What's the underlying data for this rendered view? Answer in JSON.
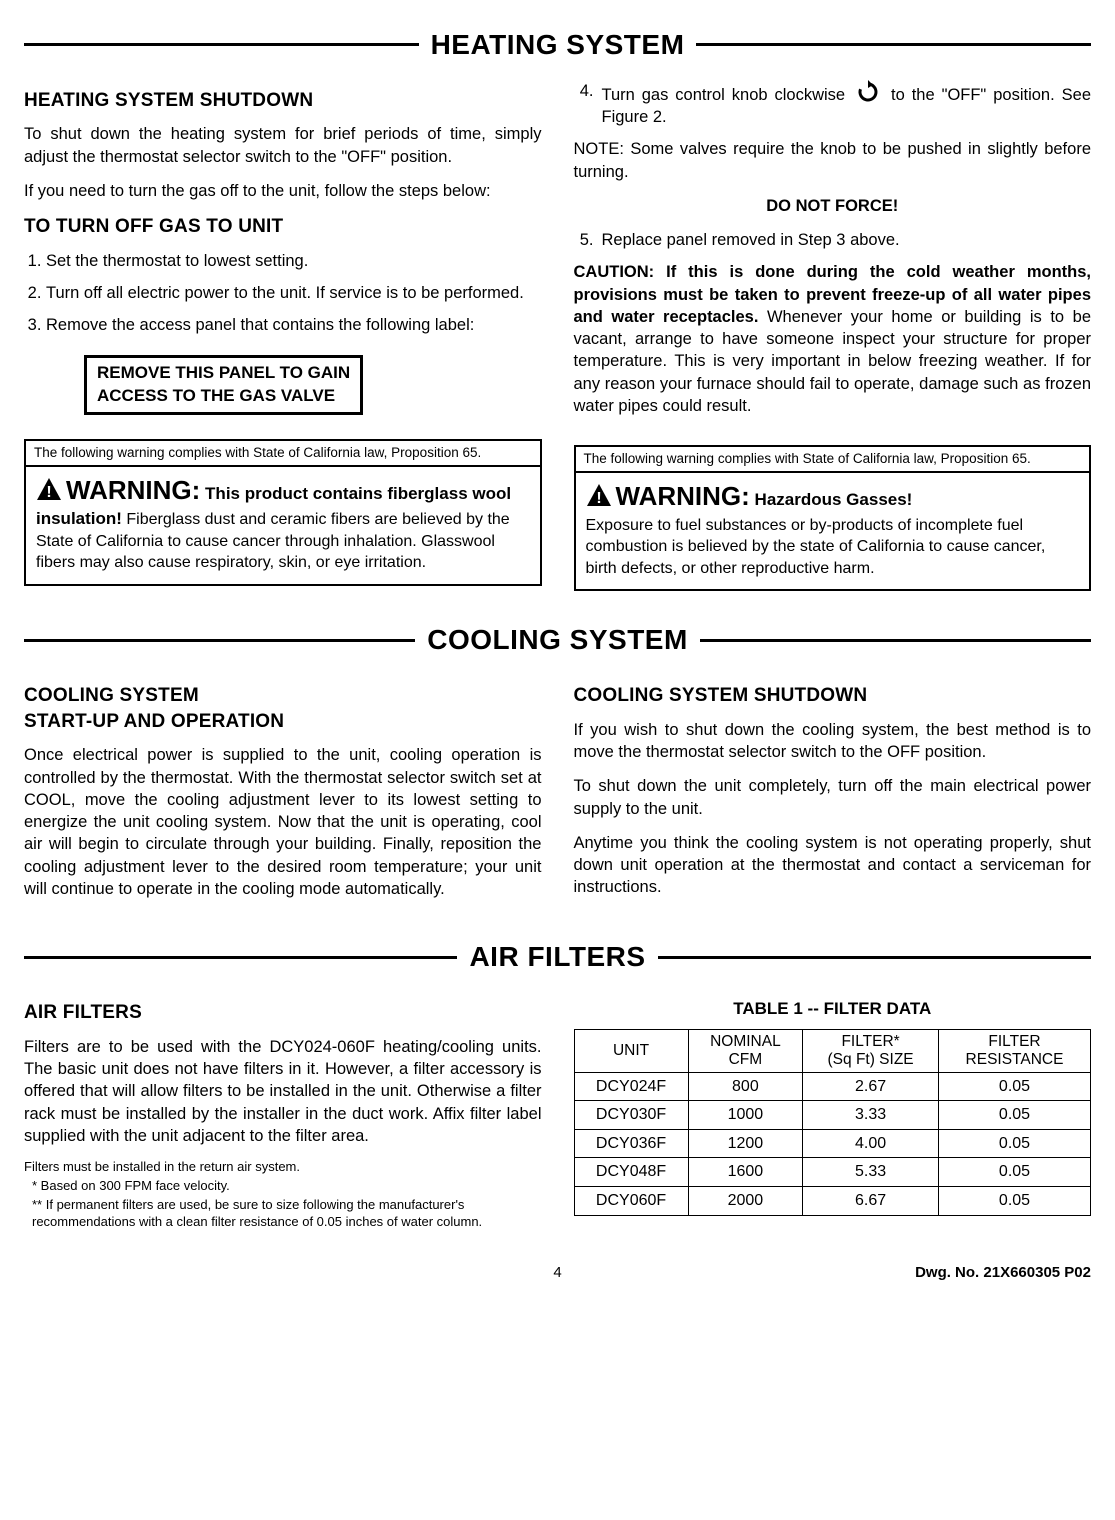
{
  "heating": {
    "section_title": "HEATING SYSTEM",
    "left": {
      "h_shutdown": "HEATING SYSTEM SHUTDOWN",
      "p1": "To shut down the heating system for brief periods of time, simply adjust the thermostat selector switch to the \"OFF\" position.",
      "p2": "If you need to turn the gas off to the unit, follow the steps below:",
      "h_turnoff": "TO TURN OFF GAS TO UNIT",
      "steps": [
        "Set the thermostat to lowest setting.",
        "Turn off all electric power to the unit. If service is to be performed.",
        "Remove the access panel that contains the following label:"
      ],
      "panel_line1": "REMOVE THIS PANEL TO GAIN",
      "panel_line2": "ACCESS TO THE GAS VALVE",
      "warn_head": "The following warning complies with State of California law, Proposition 65.",
      "warn_title": "WARNING:",
      "warn_sub": " This product contains fiberglass wool insulation!",
      "warn_body": " Fiberglass dust and ceramic fibers are believed by the State of California to cause cancer through inhalation. Glasswool fibers may also cause respiratory, skin, or eye irritation."
    },
    "right": {
      "step4_pre": "Turn gas control knob clockwise ",
      "step4_post": " to the \"OFF\" position. See Figure 2.",
      "note": "NOTE: Some valves require the knob to be pushed in slightly before turning.",
      "donotforce": "DO NOT FORCE!",
      "step5": "Replace panel removed in Step 3 above.",
      "caution_bold": "CAUTION: If this is done during the cold weather months, provisions must be taken to prevent freeze-up of all water pipes and water receptacles.",
      "caution_rest": " Whenever your home or building is to be vacant, arrange to have someone inspect your structure for proper temperature. This is very important in below freezing weather. If for any reason your furnace should fail to operate, damage such as frozen water pipes could result.",
      "warn_head": "The following warning complies with State of California law, Proposition 65.",
      "warn_title": "WARNING:",
      "warn_sub": " Hazardous Gasses!",
      "warn_body": "Exposure to fuel substances or by-products of incomplete fuel combustion is believed by the state of California to cause cancer, birth defects, or other reproductive harm."
    }
  },
  "cooling": {
    "section_title": "COOLING SYSTEM",
    "left": {
      "h": "COOLING SYSTEM\nSTART-UP AND OPERATION",
      "p": "Once electrical power is supplied to the unit, cooling operation is controlled by the thermostat. With the thermostat selector switch set at COOL, move the cooling adjustment lever to its lowest setting to energize the unit cooling system. Now that the unit is operating, cool air will begin to circulate through your building. Finally, reposition the cooling adjustment lever to the desired room temperature; your unit will continue to operate in the cooling mode automatically."
    },
    "right": {
      "h": "COOLING SYSTEM SHUTDOWN",
      "p1": "If you wish to shut down the cooling system, the best method is to move the thermostat selector switch to the OFF position.",
      "p2": "To shut down the unit completely, turn off the main electrical power supply to the unit.",
      "p3": "Anytime you think the cooling system is not operating properly, shut down unit operation at the thermostat and contact a serviceman for instructions."
    }
  },
  "filters": {
    "section_title": "AIR FILTERS",
    "left": {
      "h": "AIR FILTERS",
      "p": "Filters are to be used with the DCY024-060F heating/cooling units. The basic unit does not have filters in it. However, a filter accessory is offered that will allow filters to be installed in the unit. Otherwise a filter rack must be installed by the installer in the duct work. Affix filter label supplied with the unit adjacent to the filter area.",
      "n1": "Filters must be installed in the return air system.",
      "n2": "* Based on 300 FPM face velocity.",
      "n3": "** If permanent filters are used, be sure to size following the manufacturer's recommendations with a clean filter resistance of 0.05 inches of water column."
    },
    "right": {
      "table_title": "TABLE 1 -- FILTER DATA",
      "headers": [
        "UNIT",
        "NOMINAL\nCFM",
        "FILTER*\n(Sq Ft) SIZE",
        "FILTER\nRESISTANCE"
      ],
      "rows": [
        [
          "DCY024F",
          "800",
          "2.67",
          "0.05"
        ],
        [
          "DCY030F",
          "1000",
          "3.33",
          "0.05"
        ],
        [
          "DCY036F",
          "1200",
          "4.00",
          "0.05"
        ],
        [
          "DCY048F",
          "1600",
          "5.33",
          "0.05"
        ],
        [
          "DCY060F",
          "2000",
          "6.67",
          "0.05"
        ]
      ]
    }
  },
  "footer": {
    "page": "4",
    "dwg": "Dwg. No. 21X660305 P02"
  }
}
